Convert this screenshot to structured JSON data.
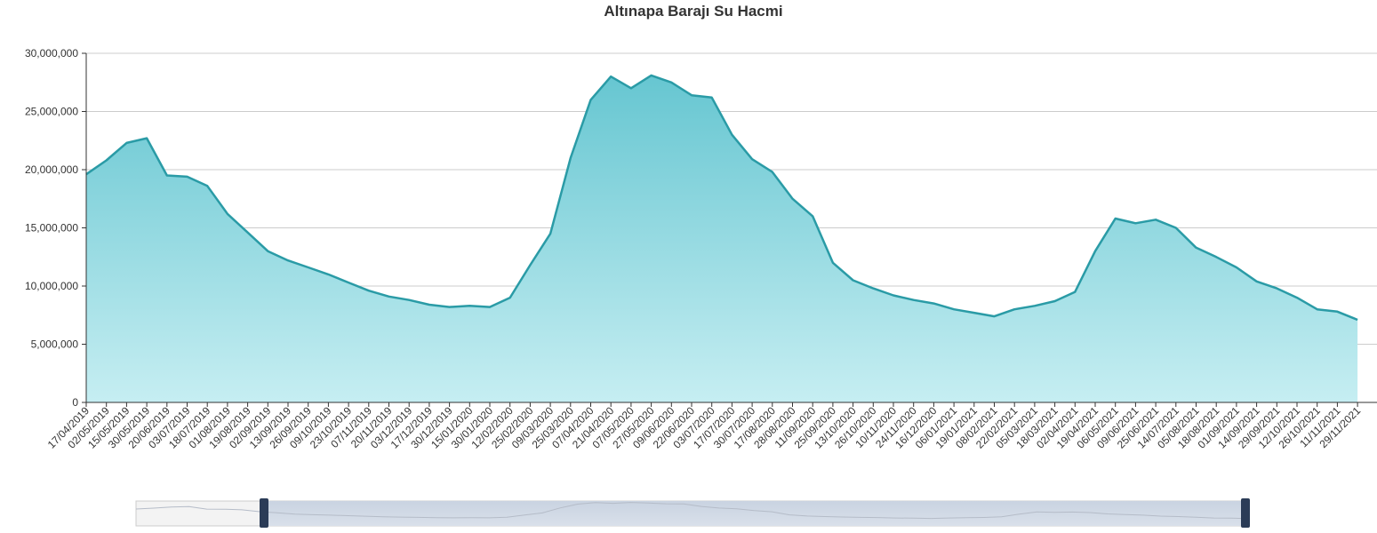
{
  "chart_data": {
    "type": "area",
    "title": "Altınapa Barajı Su Hacmi",
    "categories": [
      "17/04/2019",
      "02/05/2019",
      "15/05/2019",
      "30/05/2019",
      "20/06/2019",
      "03/07/2019",
      "18/07/2019",
      "01/08/2019",
      "19/08/2019",
      "02/09/2019",
      "13/09/2019",
      "26/09/2019",
      "09/10/2019",
      "23/10/2019",
      "07/11/2019",
      "20/11/2019",
      "03/12/2019",
      "17/12/2019",
      "30/12/2019",
      "15/01/2020",
      "30/01/2020",
      "12/02/2020",
      "25/02/2020",
      "09/03/2020",
      "25/03/2020",
      "07/04/2020",
      "21/04/2020",
      "07/05/2020",
      "27/05/2020",
      "09/06/2020",
      "22/06/2020",
      "03/07/2020",
      "17/07/2020",
      "30/07/2020",
      "17/08/2020",
      "28/08/2020",
      "11/09/2020",
      "25/09/2020",
      "13/10/2020",
      "26/10/2020",
      "10/11/2020",
      "24/11/2020",
      "16/12/2020",
      "06/01/2021",
      "19/01/2021",
      "08/02/2021",
      "22/02/2021",
      "05/03/2021",
      "18/03/2021",
      "02/04/2021",
      "19/04/2021",
      "06/05/2021",
      "09/06/2021",
      "25/06/2021",
      "14/07/2021",
      "05/08/2021",
      "18/08/2021",
      "01/09/2021",
      "14/09/2021",
      "29/09/2021",
      "12/10/2021",
      "26/10/2021",
      "11/11/2021",
      "29/11/2021"
    ],
    "values": [
      19600000,
      20800000,
      22300000,
      22700000,
      19500000,
      19400000,
      18600000,
      16200000,
      14600000,
      13000000,
      12200000,
      11600000,
      11000000,
      10300000,
      9600000,
      9100000,
      8800000,
      8400000,
      8200000,
      8300000,
      8200000,
      9000000,
      11800000,
      14500000,
      21000000,
      26000000,
      28000000,
      27000000,
      28100000,
      27500000,
      26400000,
      26200000,
      23000000,
      20900000,
      19800000,
      17500000,
      16000000,
      12000000,
      10500000,
      9800000,
      9200000,
      8800000,
      8500000,
      8000000,
      7700000,
      7400000,
      8000000,
      8300000,
      8700000,
      9500000,
      13000000,
      15800000,
      15400000,
      15700000,
      15000000,
      13300000,
      12500000,
      11600000,
      10400000,
      9800000,
      9000000,
      8000000,
      7800000,
      7100000
    ],
    "color": "#2a9ba6",
    "ylim": [
      0,
      30000000
    ],
    "yticks": [
      0,
      {
        "value": 5000000,
        "label": "5,000,000"
      },
      {
        "value": 10000000,
        "label": "10,000,000"
      },
      {
        "value": 15000000,
        "label": "15,000,000"
      },
      {
        "value": 20000000,
        "label": "20,000,000"
      },
      {
        "value": 25000000,
        "label": "25,000,000"
      },
      {
        "value": 30000000,
        "label": "30,000,000"
      }
    ],
    "grid": true
  }
}
